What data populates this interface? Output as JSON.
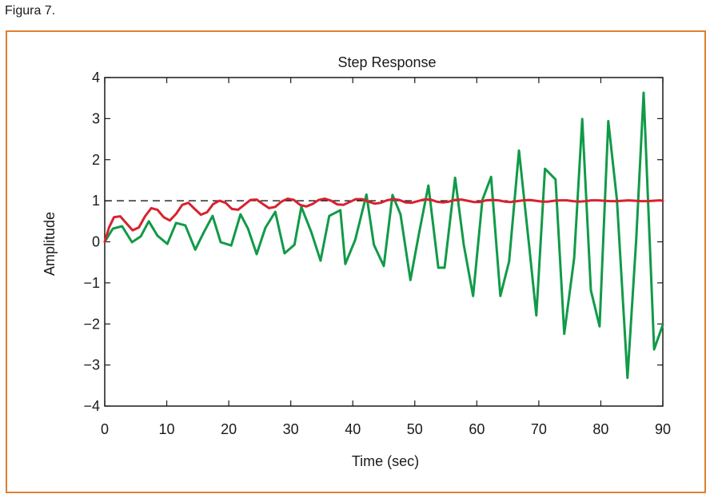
{
  "caption": "Figura 7.",
  "colors": {
    "frame": "#e07f30",
    "series_green": "#119a48",
    "series_red": "#d8222f",
    "reference": "#000000"
  },
  "chart_data": {
    "type": "line",
    "title": "Step Response",
    "xlabel": "Time (sec)",
    "ylabel": "Amplitude",
    "xlim": [
      0,
      90
    ],
    "ylim": [
      -4,
      4
    ],
    "xticks": [
      0,
      10,
      20,
      30,
      40,
      50,
      60,
      70,
      80,
      90
    ],
    "yticks": [
      4,
      3,
      2,
      1,
      0,
      -1,
      -2,
      -3,
      -4
    ],
    "ytick_labels": [
      "4",
      "3",
      "2",
      "1",
      "0",
      "−1",
      "−2",
      "−3",
      "−4"
    ],
    "xtick_labels": [
      "0",
      "10",
      "20",
      "30",
      "40",
      "50",
      "60",
      "70",
      "80",
      "90"
    ],
    "grid": false,
    "reference_line": {
      "y": 1,
      "style": "dashed"
    },
    "series": [
      {
        "name": "green",
        "color": "#119a48",
        "x": [
          0,
          1.3,
          2.8,
          4.4,
          5.8,
          7.1,
          8.5,
          10.1,
          11.5,
          13.0,
          14.6,
          16.0,
          17.4,
          18.7,
          20.4,
          21.9,
          23.1,
          24.5,
          25.9,
          27.5,
          29.0,
          30.6,
          31.7,
          33.3,
          34.8,
          36.2,
          38.0,
          38.8,
          40.4,
          42.2,
          43.4,
          45.0,
          46.4,
          47.7,
          49.3,
          50.7,
          52.2,
          53.8,
          54.8,
          56.5,
          57.9,
          59.4,
          60.9,
          62.3,
          63.8,
          65.2,
          66.8,
          68.5,
          69.6,
          71.0,
          72.7,
          74.1,
          75.7,
          77.0,
          78.4,
          79.8,
          81.2,
          82.6,
          84.3,
          85.7,
          86.9,
          88.6,
          90.0
        ],
        "y": [
          0,
          0.32,
          0.38,
          -0.01,
          0.13,
          0.5,
          0.15,
          -0.05,
          0.46,
          0.4,
          -0.19,
          0.24,
          0.63,
          -0.01,
          -0.09,
          0.67,
          0.32,
          -0.3,
          0.34,
          0.73,
          -0.28,
          -0.07,
          0.85,
          0.24,
          -0.46,
          0.63,
          0.77,
          -0.54,
          0.05,
          1.15,
          -0.07,
          -0.59,
          1.14,
          0.67,
          -0.93,
          0.22,
          1.37,
          -0.63,
          -0.63,
          1.56,
          -0.07,
          -1.32,
          1.02,
          1.58,
          -1.32,
          -0.48,
          2.22,
          -0.19,
          -1.79,
          1.78,
          1.52,
          -2.24,
          -0.4,
          2.99,
          -1.18,
          -2.06,
          2.94,
          1.02,
          -3.31,
          0.05,
          3.63,
          -2.62,
          -2.02
        ]
      },
      {
        "name": "red",
        "color": "#d8222f",
        "x": [
          0,
          0.7,
          1.5,
          2.5,
          3.5,
          4.5,
          5.5,
          6.5,
          7.5,
          8.5,
          9.5,
          10.5,
          11.5,
          12.5,
          13.5,
          14.5,
          15.5,
          16.5,
          17.5,
          18.5,
          19.5,
          20.5,
          21.5,
          22.5,
          23.5,
          24.5,
          25.5,
          26.5,
          27.5,
          28.5,
          29.5,
          30.5,
          31.5,
          32.5,
          33.5,
          34.5,
          35.5,
          36.5,
          37.5,
          38.5,
          39.5,
          40.5,
          41.5,
          42.5,
          43.5,
          44.5,
          45.5,
          46.5,
          47.5,
          48.5,
          49.5,
          50.5,
          51.5,
          52.5,
          53.5,
          54.5,
          55.5,
          56.5,
          57.5,
          58.5,
          59.5,
          60.5,
          61.5,
          62.5,
          63.5,
          64.5,
          65.5,
          66.5,
          67.5,
          68.5,
          69.5,
          70.5,
          71.5,
          72.5,
          73.5,
          74.5,
          75.5,
          76.5,
          77.5,
          78.5,
          79.5,
          80.5,
          81.5,
          82.5,
          83.5,
          84.5,
          85.5,
          86.5,
          87.5,
          88.5,
          89.5,
          90.0
        ],
        "y": [
          0,
          0.35,
          0.6,
          0.62,
          0.45,
          0.28,
          0.35,
          0.62,
          0.82,
          0.78,
          0.6,
          0.52,
          0.68,
          0.9,
          0.95,
          0.8,
          0.66,
          0.72,
          0.92,
          1.0,
          0.95,
          0.8,
          0.78,
          0.9,
          1.02,
          1.03,
          0.92,
          0.82,
          0.85,
          0.98,
          1.05,
          1.02,
          0.9,
          0.86,
          0.92,
          1.02,
          1.05,
          1.0,
          0.91,
          0.9,
          0.97,
          1.04,
          1.04,
          0.98,
          0.93,
          0.95,
          1.01,
          1.04,
          1.02,
          0.96,
          0.95,
          0.99,
          1.03,
          1.03,
          0.98,
          0.96,
          0.98,
          1.02,
          1.03,
          1.0,
          0.97,
          0.97,
          1.01,
          1.02,
          1.01,
          0.98,
          0.97,
          0.99,
          1.01,
          1.02,
          1.0,
          0.98,
          0.98,
          1.0,
          1.01,
          1.01,
          0.99,
          0.98,
          0.99,
          1.01,
          1.01,
          1.0,
          0.99,
          0.99,
          1.0,
          1.01,
          1.0,
          0.99,
          0.99,
          1.0,
          1.01,
          1.0
        ]
      }
    ]
  }
}
